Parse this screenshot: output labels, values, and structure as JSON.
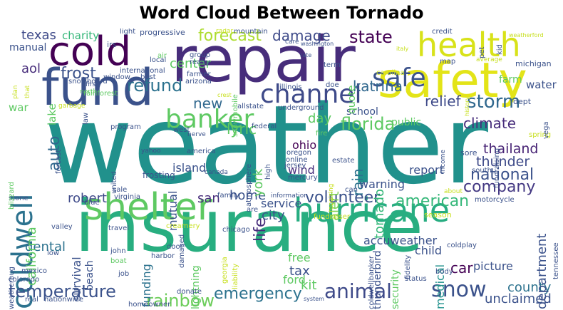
{
  "title": "Word Cloud Between Tornado",
  "palette": [
    "#440154",
    "#472d7b",
    "#3b528b",
    "#2c728e",
    "#21918c",
    "#28ae80",
    "#5ec962",
    "#addc30",
    "#fde725"
  ],
  "words": [
    {
      "text": "weather",
      "color": "#21918c"
    },
    {
      "text": "insurance",
      "color": "#28ae80"
    },
    {
      "text": "repair",
      "color": "#472d7b"
    },
    {
      "text": "safety",
      "color": "#e3e418"
    },
    {
      "text": "fund",
      "color": "#3b528b"
    },
    {
      "text": "cold",
      "color": "#440154"
    },
    {
      "text": "health",
      "color": "#d8e219"
    },
    {
      "text": "hurricane",
      "color": "#27ad81"
    },
    {
      "text": "shelter",
      "color": "#5ec962"
    },
    {
      "text": "coldwell",
      "color": "#2c728e"
    },
    {
      "text": "safe",
      "color": "#3b528b"
    },
    {
      "text": "channel",
      "color": "#3e4a89"
    },
    {
      "text": "banker",
      "color": "#5ec962"
    },
    {
      "text": "storm",
      "color": "#31688e"
    },
    {
      "text": "snow",
      "color": "#3b528b"
    },
    {
      "text": "animal",
      "color": "#3e4a89"
    },
    {
      "text": "temperature",
      "color": "#3b528b"
    },
    {
      "text": "rainbow",
      "color": "#6ccd5a"
    },
    {
      "text": "emergency",
      "color": "#2c728e"
    },
    {
      "text": "volunteer",
      "color": "#3b528b"
    },
    {
      "text": "american",
      "color": "#35b779"
    },
    {
      "text": "company",
      "color": "#443983"
    },
    {
      "text": "national",
      "color": "#3b528b"
    },
    {
      "text": "thailand",
      "color": "#482475"
    },
    {
      "text": "thunder",
      "color": "#3e4a89"
    },
    {
      "text": "florida",
      "color": "#5ec962"
    },
    {
      "text": "climate",
      "color": "#472d7b"
    },
    {
      "text": "state",
      "color": "#440154"
    },
    {
      "text": "damage",
      "color": "#3e4a89"
    },
    {
      "text": "forecast",
      "color": "#addc30"
    },
    {
      "text": "refund",
      "color": "#2c728e"
    },
    {
      "text": "relief",
      "color": "#3e4a89"
    },
    {
      "text": "katrina",
      "color": "#31688e"
    },
    {
      "text": "frost",
      "color": "#3b528b"
    },
    {
      "text": "auto",
      "color": "#31688e"
    },
    {
      "text": "lyric",
      "color": "#5ec962"
    },
    {
      "text": "new",
      "color": "#31688e"
    },
    {
      "text": "texas",
      "color": "#3e4a89"
    },
    {
      "text": "charity",
      "color": "#35b779"
    },
    {
      "text": "aol",
      "color": "#472d7b"
    },
    {
      "text": "center",
      "color": "#5ec962"
    },
    {
      "text": "county",
      "color": "#2c728e"
    },
    {
      "text": "unclaimed",
      "color": "#3b528b"
    },
    {
      "text": "department",
      "color": "#3b528b"
    },
    {
      "text": "car",
      "color": "#440154"
    },
    {
      "text": "picture",
      "color": "#3b528b"
    },
    {
      "text": "medical",
      "color": "#21918c"
    },
    {
      "text": "child",
      "color": "#3b528b"
    },
    {
      "text": "accuweather",
      "color": "#3b528b"
    },
    {
      "text": "tax",
      "color": "#3b528b"
    },
    {
      "text": "kit",
      "color": "#5ec962"
    },
    {
      "text": "ford",
      "color": "#5ec962"
    },
    {
      "text": "free",
      "color": "#5ec962"
    },
    {
      "text": "dental",
      "color": "#2c728e"
    },
    {
      "text": "life",
      "color": "#472d7b"
    },
    {
      "text": "home",
      "color": "#3b528b"
    },
    {
      "text": "city",
      "color": "#3b528b"
    },
    {
      "text": "service",
      "color": "#3b528b"
    },
    {
      "text": "san",
      "color": "#472d7b"
    },
    {
      "text": "mutual",
      "color": "#3b528b"
    },
    {
      "text": "funding",
      "color": "#2c728e"
    },
    {
      "text": "survival",
      "color": "#3b528b"
    },
    {
      "text": "robert",
      "color": "#3e4a89"
    },
    {
      "text": "california",
      "color": "#5ec962"
    },
    {
      "text": "island",
      "color": "#3b528b"
    },
    {
      "text": "york",
      "color": "#5ec962"
    },
    {
      "text": "rain",
      "color": "#2c728e"
    },
    {
      "text": "alert",
      "color": "#7ad151"
    },
    {
      "text": "tornado",
      "color": "#35b779"
    },
    {
      "text": "warning",
      "color": "#3b528b"
    },
    {
      "text": "day",
      "color": "#5ec962"
    },
    {
      "text": "wind",
      "color": "#472d7b"
    },
    {
      "text": "ohio",
      "color": "#440154"
    },
    {
      "text": "report",
      "color": "#3b528b"
    },
    {
      "text": "school",
      "color": "#3b528b"
    },
    {
      "text": "public",
      "color": "#5ec962"
    },
    {
      "text": "water",
      "color": "#3b528b"
    },
    {
      "text": "farm",
      "color": "#5ec962"
    },
    {
      "text": "quote",
      "color": "#5ec962"
    },
    {
      "text": "war",
      "color": "#5ec962"
    },
    {
      "text": "lake",
      "color": "#5ec962"
    },
    {
      "text": "manual",
      "color": "#3b528b"
    },
    {
      "text": "beach",
      "color": "#3b528b"
    },
    {
      "text": "lightning",
      "color": "#5ec962"
    },
    {
      "text": "security",
      "color": "#5ec962"
    },
    {
      "text": "thunderbird",
      "color": "#3b528b"
    },
    {
      "text": "michigan",
      "color": "#3b528b"
    },
    {
      "text": "dept",
      "color": "#3b528b"
    },
    {
      "text": "fundraising",
      "color": "#3b528b"
    },
    {
      "text": "sore",
      "color": "#3b528b"
    },
    {
      "text": "south",
      "color": "#3b528b"
    },
    {
      "text": "motorcycle",
      "color": "#3b528b"
    },
    {
      "text": "tennessee",
      "color": "#3b528b"
    },
    {
      "text": "season",
      "color": "#c8e020"
    },
    {
      "text": "body",
      "color": "#3b528b"
    },
    {
      "text": "status",
      "color": "#3b528b"
    },
    {
      "text": "coldplay",
      "color": "#3b528b"
    },
    {
      "text": "harbor",
      "color": "#3b528b"
    },
    {
      "text": "door",
      "color": "#3b528b"
    },
    {
      "text": "john",
      "color": "#3b528b"
    },
    {
      "text": "boat",
      "color": "#5ec962"
    },
    {
      "text": "job",
      "color": "#3b528b"
    },
    {
      "text": "mexico",
      "color": "#3b528b"
    },
    {
      "text": "colorado",
      "color": "#3b528b"
    },
    {
      "text": "low",
      "color": "#3b528b"
    },
    {
      "text": "stone",
      "color": "#3b528b"
    },
    {
      "text": "blizzard",
      "color": "#5ec962"
    },
    {
      "text": "weatherbug",
      "color": "#3b528b"
    },
    {
      "text": "valley",
      "color": "#3b528b"
    },
    {
      "text": "travel",
      "color": "#3b528b"
    },
    {
      "text": "creamery",
      "color": "#c8e020"
    },
    {
      "text": "chicago",
      "color": "#3b528b"
    },
    {
      "text": "fundraiser",
      "color": "#c8e020"
    },
    {
      "text": "georgia",
      "color": "#c8e020"
    },
    {
      "text": "liability",
      "color": "#c8e020"
    },
    {
      "text": "are",
      "color": "#3b528b"
    },
    {
      "text": "family",
      "color": "#3b528b"
    },
    {
      "text": "information",
      "color": "#3b528b"
    },
    {
      "text": "can",
      "color": "#3b528b"
    },
    {
      "text": "mercury",
      "color": "#3b528b"
    },
    {
      "text": "jersey",
      "color": "#3b528b"
    },
    {
      "text": "online",
      "color": "#3b528b"
    },
    {
      "text": "oregon",
      "color": "#3b528b"
    },
    {
      "text": "high",
      "color": "#3b528b"
    },
    {
      "text": "atmosphere",
      "color": "#3b528b"
    },
    {
      "text": "canada",
      "color": "#3b528b"
    },
    {
      "text": "frosting",
      "color": "#3b528b"
    },
    {
      "text": "america",
      "color": "#3b528b"
    },
    {
      "text": "yahoo",
      "color": "#3b528b"
    },
    {
      "text": "united",
      "color": "#3b528b"
    },
    {
      "text": "sale",
      "color": "#3b528b"
    },
    {
      "text": "virginia",
      "color": "#3b528b"
    },
    {
      "text": "blue",
      "color": "#3b528b"
    },
    {
      "text": "damaged",
      "color": "#3b528b"
    },
    {
      "text": "best",
      "color": "#3b528b"
    },
    {
      "text": "homeowner",
      "color": "#3b528b"
    },
    {
      "text": "donate",
      "color": "#3b528b"
    },
    {
      "text": "real",
      "color": "#3b528b"
    },
    {
      "text": "nationwide",
      "color": "#3b528b"
    },
    {
      "text": "system",
      "color": "#3b528b"
    },
    {
      "text": "fidelity",
      "color": "#3b528b"
    },
    {
      "text": "coldwellbanker",
      "color": "#3b528b"
    },
    {
      "text": "estate",
      "color": "#3b528b"
    },
    {
      "text": "fire",
      "color": "#5ec962"
    },
    {
      "text": "federal",
      "color": "#3b528b"
    },
    {
      "text": "underground",
      "color": "#3b528b"
    },
    {
      "text": "allstate",
      "color": "#3b528b"
    },
    {
      "text": "snowmobile",
      "color": "#5ec962"
    },
    {
      "text": "illinois",
      "color": "#3b528b"
    },
    {
      "text": "doe",
      "color": "#3b528b"
    },
    {
      "text": "term",
      "color": "#3b528b"
    },
    {
      "text": "carolina",
      "color": "#c8e020"
    },
    {
      "text": "income",
      "color": "#3b528b"
    },
    {
      "text": "history",
      "color": "#c8e020"
    },
    {
      "text": "spring",
      "color": "#c8e020"
    },
    {
      "text": "vega",
      "color": "#3b528b"
    },
    {
      "text": "about",
      "color": "#c8e020"
    },
    {
      "text": "repairing",
      "color": "#c8e020"
    },
    {
      "text": "forcast",
      "color": "#3b528b"
    },
    {
      "text": "west",
      "color": "#3b528b"
    },
    {
      "text": "nerve",
      "color": "#3b528b"
    },
    {
      "text": "program",
      "color": "#3b528b"
    },
    {
      "text": "law",
      "color": "#3b528b"
    },
    {
      "text": "garbage",
      "color": "#c8e020"
    },
    {
      "text": "rainforest",
      "color": "#5ec962"
    },
    {
      "text": "north",
      "color": "#5ec962"
    },
    {
      "text": "snowboard",
      "color": "#3b528b"
    },
    {
      "text": "window",
      "color": "#3b528b"
    },
    {
      "text": "international",
      "color": "#3b528b"
    },
    {
      "text": "local",
      "color": "#3b528b"
    },
    {
      "text": "air",
      "color": "#5ec962"
    },
    {
      "text": "realty",
      "color": "#3b528b"
    },
    {
      "text": "group",
      "color": "#3b528b"
    },
    {
      "text": "farmer",
      "color": "#3b528b"
    },
    {
      "text": "arizona",
      "color": "#3b528b"
    },
    {
      "text": "crest",
      "color": "#c8e020"
    },
    {
      "text": "irs",
      "color": "#3b528b"
    },
    {
      "text": "first",
      "color": "#3b528b"
    },
    {
      "text": "that",
      "color": "#c8e020"
    },
    {
      "text": "plan",
      "color": "#c8e020"
    },
    {
      "text": "light",
      "color": "#3b528b"
    },
    {
      "text": "progressive",
      "color": "#3b528b"
    },
    {
      "text": "radar",
      "color": "#c8e020"
    },
    {
      "text": "mountain",
      "color": "#3b528b"
    },
    {
      "text": "care",
      "color": "#3b528b"
    },
    {
      "text": "washington",
      "color": "#3b528b"
    },
    {
      "text": "credit",
      "color": "#3b528b"
    },
    {
      "text": "rate",
      "color": "#3b528b"
    },
    {
      "text": "italy",
      "color": "#c8e020"
    },
    {
      "text": "map",
      "color": "#3b528b"
    },
    {
      "text": "pet",
      "color": "#3b528b"
    },
    {
      "text": "kid",
      "color": "#3b528b"
    },
    {
      "text": "weatherford",
      "color": "#c8e020"
    },
    {
      "text": "average",
      "color": "#c8e020"
    }
  ]
}
